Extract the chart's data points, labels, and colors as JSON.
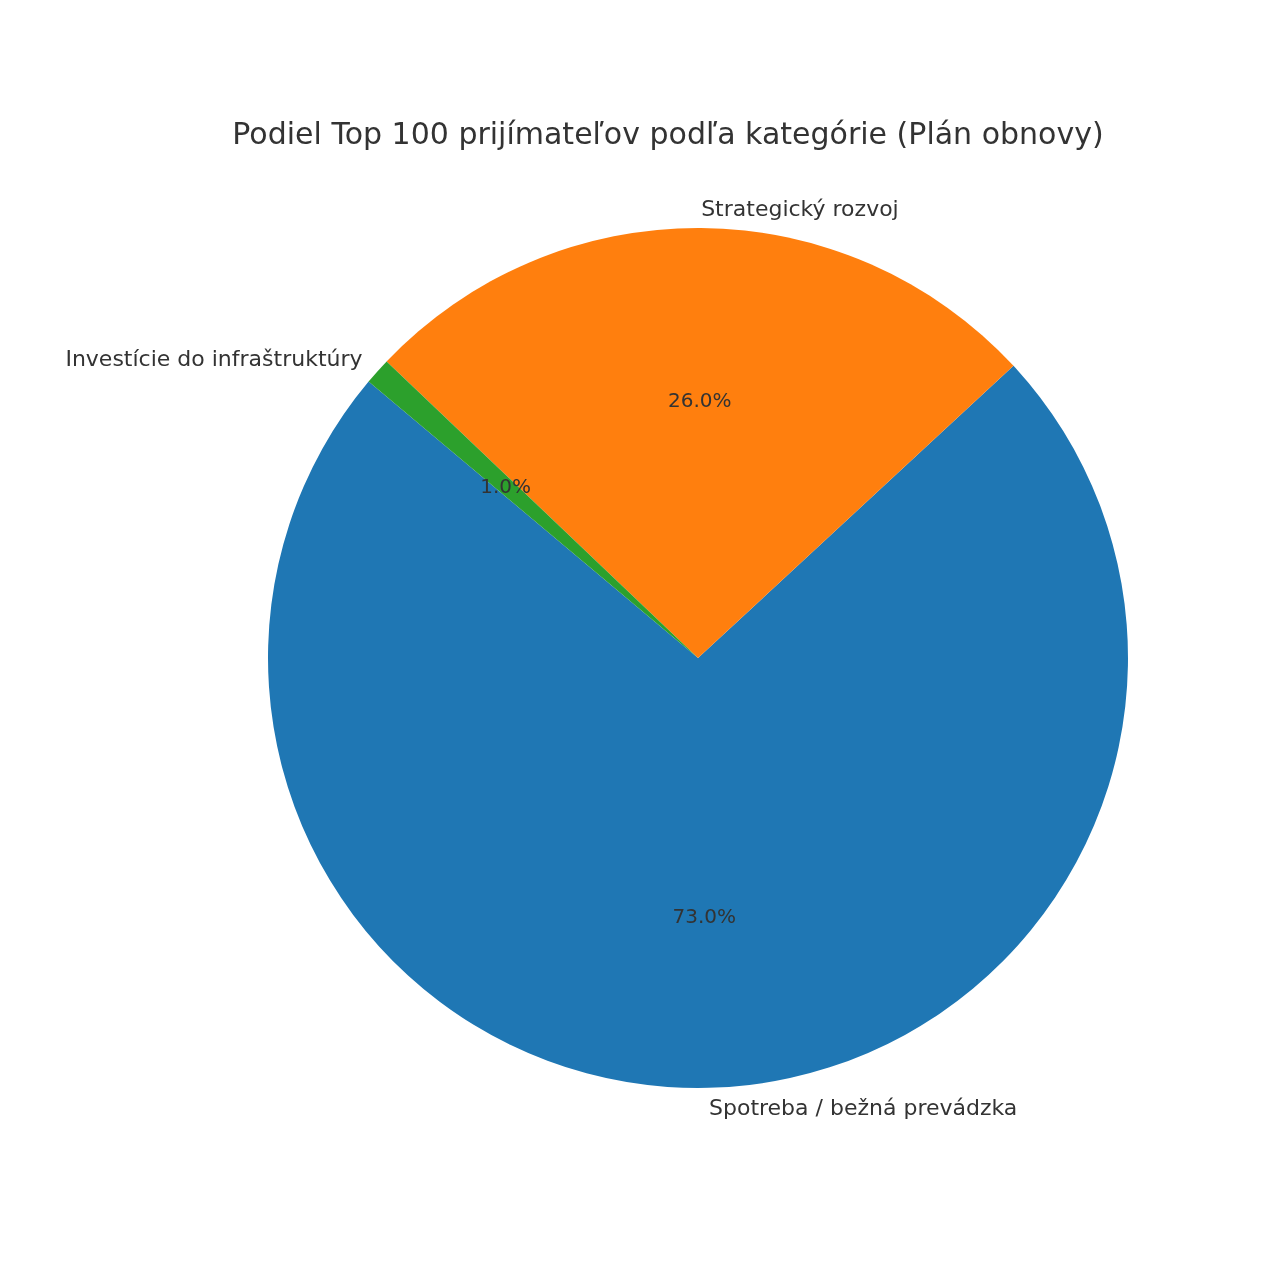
{
  "chart_data": {
    "type": "pie",
    "title": "Podiel Top 100 prijímateľov podľa kategórie (Plán obnovy)",
    "categories": [
      "Spotreba / bežná prevádzka",
      "Strategický rozvoj",
      "Investície do infraštruktúry"
    ],
    "values": [
      73,
      26,
      1
    ],
    "colors": [
      "#1f77b4",
      "#ff7f0e",
      "#2ca02c"
    ],
    "value_labels": [
      "73.0%",
      "26.0%",
      "1.0%"
    ]
  }
}
